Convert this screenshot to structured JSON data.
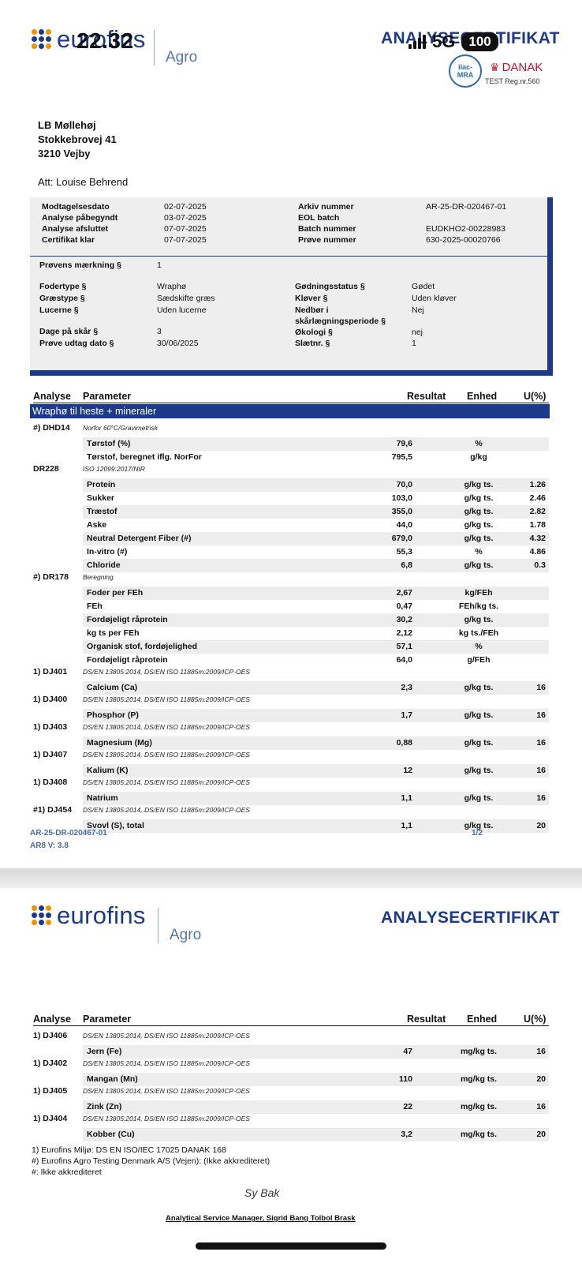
{
  "status": {
    "time": "22.32",
    "network": "5G",
    "battery": "100"
  },
  "brand": {
    "name": "eurofins",
    "division": "Agro",
    "doc_title": "ANALYSECERTIFIKAT",
    "ilac": "ilac-MRA",
    "danak": "DANAK",
    "reg": "TEST Reg.nr.560"
  },
  "colors": {
    "brand_blue": "#1d3a8a"
  },
  "address": {
    "line1": "LB Møllehøj",
    "line2": "Stokkebrovej 41",
    "line3": "3210 Vejby",
    "att": "Att: Louise Behrend"
  },
  "info": {
    "modtagelsesdato_label": "Modtagelsesdato",
    "modtagelsesdato": "02-07-2025",
    "paabegyndt_label": "Analyse påbegyndt",
    "paabegyndt": "03-07-2025",
    "afsluttet_label": "Analyse afsluttet",
    "afsluttet": "07-07-2025",
    "klar_label": "Certifikat klar",
    "klar": "07-07-2025",
    "arkiv_label": "Arkiv nummer",
    "arkiv": "AR-25-DR-020467-01",
    "eol_label": "EOL batch",
    "eol": "",
    "batch_label": "Batch nummer",
    "batch": "EUDKHO2-00228983",
    "proeve_label": "Prøve nummer",
    "proeve": "630-2025-00020766",
    "maerkning_label": "Prøvens mærkning §",
    "maerkning": "1",
    "fodertype_label": "Fodertype §",
    "fodertype": "Wraphø",
    "graestype_label": "Græstype §",
    "graestype": "Sædskifte græs",
    "lucerne_label": "Lucerne §",
    "lucerne": "Uden lucerne",
    "dage_label": "Dage på skår §",
    "dage": "3",
    "udtag_label": "Prøve udtag dato §",
    "udtag": "30/06/2025",
    "goedning_label": "Gødningsstatus §",
    "goedning": "Gødet",
    "kloever_label": "Kløver §",
    "kloever": "Uden kløver",
    "nedboer_label1": "Nedbør i",
    "nedboer_label2": "skårlægningsperiode §",
    "nedboer": "Nej",
    "oekologi_label": "Økologi §",
    "oekologi": "nej",
    "slaet_label": "Slætnr. §",
    "slaet": "1"
  },
  "table_header": {
    "analyse": "Analyse",
    "parameter": "Parameter",
    "resultat": "Resultat",
    "enhed": "Enhed",
    "u": "U(%)"
  },
  "section_title": "Wraphø til heste + mineraler",
  "groups1": [
    {
      "code": "#) DHD14",
      "method": "Norfor 60°C/Gravimetrisk",
      "rows": [
        {
          "param": "Tørstof (%)",
          "value": "79,6",
          "unit": "%",
          "u": ""
        },
        {
          "param": "Tørstof, beregnet iflg. NorFor",
          "value": "795,5",
          "unit": "g/kg",
          "u": ""
        }
      ]
    },
    {
      "code": "DR228",
      "method": "ISO 12099:2017/NIR",
      "rows": [
        {
          "param": "Protein",
          "value": "70,0",
          "unit": "g/kg ts.",
          "u": "1.26"
        },
        {
          "param": "Sukker",
          "value": "103,0",
          "unit": "g/kg ts.",
          "u": "2.46"
        },
        {
          "param": "Træstof",
          "value": "355,0",
          "unit": "g/kg ts.",
          "u": "2.82"
        },
        {
          "param": "Aske",
          "value": "44,0",
          "unit": "g/kg ts.",
          "u": "1.78"
        },
        {
          "param": "Neutral Detergent Fiber (#)",
          "value": "679,0",
          "unit": "g/kg ts.",
          "u": "4.32"
        },
        {
          "param": "In-vitro (#)",
          "value": "55,3",
          "unit": "%",
          "u": "4.86"
        },
        {
          "param": "Chloride",
          "value": "6,8",
          "unit": "g/kg ts.",
          "u": "0.3"
        }
      ]
    },
    {
      "code": "#) DR178",
      "method": "Beregning",
      "rows": [
        {
          "param": "Foder per FEh",
          "value": "2,67",
          "unit": "kg/FEh",
          "u": ""
        },
        {
          "param": "FEh",
          "value": "0,47",
          "unit": "FEh/kg ts.",
          "u": ""
        },
        {
          "param": "Fordøjeligt råprotein",
          "value": "30,2",
          "unit": "g/kg ts.",
          "u": ""
        },
        {
          "param": "kg ts per FEh",
          "value": "2,12",
          "unit": "kg ts./FEh",
          "u": ""
        },
        {
          "param": "Organisk stof, fordøjelighed",
          "value": "57,1",
          "unit": "%",
          "u": ""
        },
        {
          "param": "Fordøjeligt råprotein",
          "value": "64,0",
          "unit": "g/FEh",
          "u": ""
        }
      ]
    },
    {
      "code": "1) DJ401",
      "method": "DS/EN 13805:2014, DS/EN ISO 11885m:2009/ICP-OES",
      "rows": [
        {
          "param": "Calcium (Ca)",
          "value": "2,3",
          "unit": "g/kg ts.",
          "u": "16"
        }
      ]
    },
    {
      "code": "1) DJ400",
      "method": "DS/EN 13805:2014, DS/EN ISO 11885m:2009/ICP-OES",
      "rows": [
        {
          "param": "Phosphor (P)",
          "value": "1,7",
          "unit": "g/kg ts.",
          "u": "16"
        }
      ]
    },
    {
      "code": "1) DJ403",
      "method": "DS/EN 13805:2014, DS/EN ISO 11885m:2009/ICP-OES",
      "rows": [
        {
          "param": "Magnesium (Mg)",
          "value": "0,88",
          "unit": "g/kg ts.",
          "u": "16"
        }
      ]
    },
    {
      "code": "1) DJ407",
      "method": "DS/EN 13805:2014, DS/EN ISO 11885m:2009/ICP-OES",
      "rows": [
        {
          "param": "Kalium (K)",
          "value": "12",
          "unit": "g/kg ts.",
          "u": "16"
        }
      ]
    },
    {
      "code": "1) DJ408",
      "method": "DS/EN 13805:2014, DS/EN ISO 11885m:2009/ICP-OES",
      "rows": [
        {
          "param": "Natrium",
          "value": "1,1",
          "unit": "g/kg ts.",
          "u": "16"
        }
      ]
    },
    {
      "code": "#1) DJ454",
      "method": "DS/EN 13805:2014, DS/EN ISO 11885m:2009/ICP-OES",
      "rows": [
        {
          "param": "Svovl (S), total",
          "value": "1,1",
          "unit": "g/kg ts.",
          "u": "20"
        }
      ]
    }
  ],
  "groups2": [
    {
      "code": "1) DJ406",
      "method": "DS/EN 13805:2014, DS/EN ISO 11885m:2009/ICP-OES",
      "rows": [
        {
          "param": "Jern (Fe)",
          "value": "47",
          "unit": "mg/kg ts.",
          "u": "16"
        }
      ]
    },
    {
      "code": "1) DJ402",
      "method": "DS/EN 13805:2014, DS/EN ISO 11885m:2009/ICP-OES",
      "rows": [
        {
          "param": "Mangan (Mn)",
          "value": "110",
          "unit": "mg/kg ts.",
          "u": "20"
        }
      ]
    },
    {
      "code": "1) DJ405",
      "method": "DS/EN 13805:2014, DS/EN ISO 11885m:2009/ICP-OES",
      "rows": [
        {
          "param": "Zink (Zn)",
          "value": "22",
          "unit": "mg/kg ts.",
          "u": "16"
        }
      ]
    },
    {
      "code": "1) DJ404",
      "method": "DS/EN 13805:2014, DS/EN ISO 11885m:2009/ICP-OES",
      "rows": [
        {
          "param": "Kobber (Cu)",
          "value": "3,2",
          "unit": "mg/kg ts.",
          "u": "20"
        }
      ]
    }
  ],
  "footer": {
    "archive_id": "AR-25-DR-020467-01",
    "page": "1/2",
    "version": "AR8 V: 3.8"
  },
  "notes": {
    "n1": "1) Eurofins Miljø: DS EN ISO/IEC 17025 DANAK 168",
    "n2": "#) Eurofins Agro Testing Denmark A/S (Vejen): (Ikke akkrediteret)",
    "n3": "#: Ikke akkrediteret"
  },
  "signature": {
    "mark": "Sy Bak",
    "line": "Analytical Service Manager, Sigrid Bang Tolbol Brask"
  }
}
